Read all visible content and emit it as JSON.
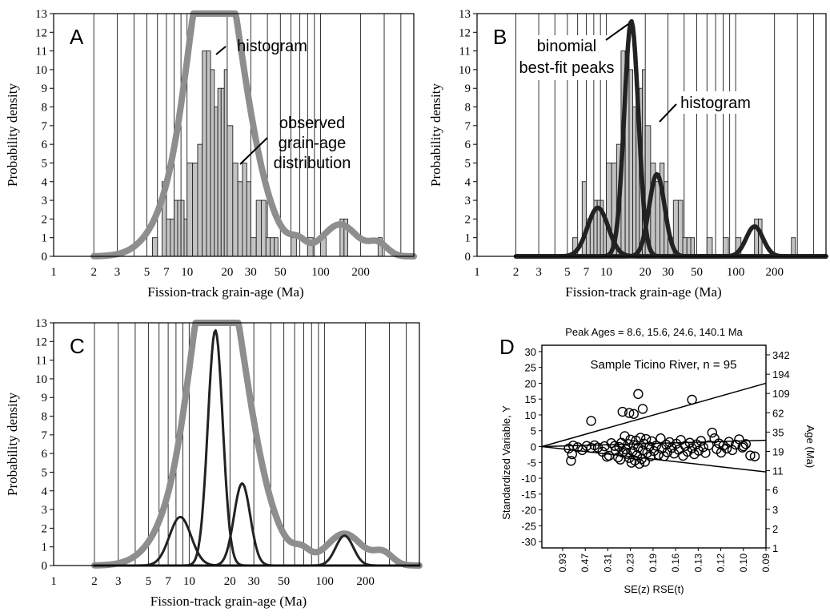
{
  "chart_data": [
    {
      "id": "A",
      "type": "bar",
      "panel_label": "A",
      "xlabel": "Fission-track grain-age (Ma)",
      "ylabel": "Probability density",
      "x_scale": "log",
      "xlim": [
        1,
        500
      ],
      "ylim": [
        0,
        13
      ],
      "x_tick_labels": [
        "1",
        "2",
        "3",
        "5",
        "7",
        "10",
        "20",
        "30",
        "50",
        "100",
        "200"
      ],
      "y_tick_labels": [
        "0",
        "1",
        "2",
        "3",
        "4",
        "5",
        "6",
        "7",
        "8",
        "9",
        "10",
        "11",
        "12",
        "13"
      ],
      "annotations": [
        "histogram",
        "observed",
        "grain-age",
        "distribution"
      ],
      "histogram": {
        "bin_left": [
          5.5,
          6.5,
          7,
          7.5,
          8,
          8.5,
          9,
          9.5,
          10,
          11,
          12,
          13,
          14,
          15,
          16,
          17,
          18,
          19,
          20,
          22,
          24,
          26,
          28,
          30,
          33,
          36,
          39,
          42,
          45,
          60,
          80,
          100,
          140,
          150,
          270
        ],
        "bin_right": [
          6,
          7,
          7.5,
          8,
          8.5,
          9,
          9.5,
          10,
          11,
          12,
          13,
          14,
          15,
          16,
          17,
          18,
          19,
          20,
          22,
          24,
          26,
          28,
          30,
          33,
          36,
          39,
          42,
          45,
          48,
          66,
          88,
          110,
          150,
          160,
          290
        ],
        "values": [
          1,
          4,
          2,
          2,
          3,
          3,
          3,
          2,
          5,
          5,
          6,
          11,
          11,
          10,
          8,
          9,
          9,
          10,
          7,
          5,
          4,
          5,
          4,
          1,
          3,
          3,
          1,
          1,
          1,
          1,
          1,
          1,
          2,
          2,
          1
        ]
      },
      "series": [
        {
          "name": "observed grain-age distribution",
          "color": "#8e8e8e",
          "peaks": [
            {
              "age": 9,
              "height": 2.8,
              "width": 0.19
            },
            {
              "age": 14.2,
              "height": 8.5,
              "width": 0.15
            },
            {
              "age": 19,
              "height": 8.3,
              "width": 0.18
            },
            {
              "age": 28,
              "height": 2.4,
              "width": 0.2
            },
            {
              "age": 68,
              "height": 0.55,
              "width": 0.06
            },
            {
              "age": 140,
              "height": 1.7,
              "width": 0.13
            },
            {
              "age": 270,
              "height": 0.65,
              "width": 0.07
            }
          ]
        }
      ]
    },
    {
      "id": "B",
      "type": "bar",
      "panel_label": "B",
      "xlabel": "Fission-track grain-age (Ma)",
      "ylabel": "Probability density",
      "x_scale": "log",
      "xlim": [
        1,
        500
      ],
      "ylim": [
        0,
        13
      ],
      "x_tick_labels": [
        "1",
        "2",
        "3",
        "5",
        "7",
        "10",
        "20",
        "30",
        "50",
        "100",
        "200"
      ],
      "y_tick_labels": [
        "0",
        "1",
        "2",
        "3",
        "4",
        "5",
        "6",
        "7",
        "8",
        "9",
        "10",
        "11",
        "12",
        "13"
      ],
      "annotations": [
        "binomial",
        "best-fit peaks",
        "histogram"
      ],
      "histogram": {
        "bin_left": [
          5.5,
          6.5,
          7,
          7.5,
          8,
          8.5,
          9,
          9.5,
          10,
          11,
          12,
          13,
          14,
          15,
          16,
          17,
          18,
          19,
          20,
          22,
          24,
          26,
          28,
          30,
          33,
          36,
          39,
          42,
          45,
          60,
          80,
          100,
          140,
          150,
          270
        ],
        "bin_right": [
          6,
          7,
          7.5,
          8,
          8.5,
          9,
          9.5,
          10,
          11,
          12,
          13,
          14,
          15,
          16,
          17,
          18,
          19,
          20,
          22,
          24,
          26,
          28,
          30,
          33,
          36,
          39,
          42,
          45,
          48,
          66,
          88,
          110,
          150,
          160,
          290
        ],
        "values": [
          1,
          4,
          2,
          2,
          3,
          3,
          3,
          2,
          5,
          5,
          6,
          11,
          11,
          10,
          8,
          9,
          9,
          10,
          7,
          5,
          4,
          5,
          4,
          1,
          3,
          3,
          1,
          1,
          1,
          1,
          1,
          1,
          2,
          2,
          1
        ]
      },
      "series": [
        {
          "name": "binomial best-fit peak 8.6 Ma",
          "color": "#222222",
          "peaks": [
            {
              "age": 8.6,
              "height": 2.6,
              "width": 0.08
            }
          ]
        },
        {
          "name": "binomial best-fit peak 15.6 Ma",
          "color": "#222222",
          "peaks": [
            {
              "age": 15.6,
              "height": 12.6,
              "width": 0.055
            }
          ]
        },
        {
          "name": "binomial best-fit peak 24.6 Ma",
          "color": "#222222",
          "peaks": [
            {
              "age": 24.6,
              "height": 4.4,
              "width": 0.06
            }
          ]
        },
        {
          "name": "binomial best-fit peak 140.1 Ma",
          "color": "#222222",
          "peaks": [
            {
              "age": 140.1,
              "height": 1.6,
              "width": 0.065
            }
          ]
        }
      ]
    },
    {
      "id": "C",
      "type": "line",
      "panel_label": "C",
      "xlabel": "Fission-track grain-age (Ma)",
      "ylabel": "Probability density",
      "x_scale": "log",
      "xlim": [
        1,
        500
      ],
      "ylim": [
        0,
        13
      ],
      "x_tick_labels": [
        "1",
        "2",
        "3",
        "5",
        "7",
        "10",
        "20",
        "30",
        "50",
        "100",
        "200"
      ],
      "y_tick_labels": [
        "0",
        "1",
        "2",
        "3",
        "4",
        "5",
        "6",
        "7",
        "8",
        "9",
        "10",
        "11",
        "12",
        "13"
      ],
      "series": [
        {
          "name": "observed grain-age distribution",
          "color": "#8e8e8e",
          "peaks": [
            {
              "age": 9,
              "height": 2.8,
              "width": 0.19
            },
            {
              "age": 14.2,
              "height": 8.5,
              "width": 0.15
            },
            {
              "age": 19,
              "height": 8.3,
              "width": 0.18
            },
            {
              "age": 28,
              "height": 2.4,
              "width": 0.2
            },
            {
              "age": 68,
              "height": 0.55,
              "width": 0.06
            },
            {
              "age": 140,
              "height": 1.7,
              "width": 0.13
            },
            {
              "age": 270,
              "height": 0.65,
              "width": 0.07
            }
          ]
        },
        {
          "name": "binomial best-fit peak 8.6 Ma",
          "color": "#222222",
          "peaks": [
            {
              "age": 8.6,
              "height": 2.6,
              "width": 0.08
            }
          ]
        },
        {
          "name": "binomial best-fit peak 15.6 Ma",
          "color": "#222222",
          "peaks": [
            {
              "age": 15.6,
              "height": 12.6,
              "width": 0.055
            }
          ]
        },
        {
          "name": "binomial best-fit peak 24.6 Ma",
          "color": "#222222",
          "peaks": [
            {
              "age": 24.6,
              "height": 4.4,
              "width": 0.06
            }
          ]
        },
        {
          "name": "binomial best-fit peak 140.1 Ma",
          "color": "#222222",
          "peaks": [
            {
              "age": 140.1,
              "height": 1.6,
              "width": 0.065
            }
          ]
        }
      ]
    },
    {
      "id": "D",
      "type": "scatter",
      "panel_label": "D",
      "title": "Peak Ages = 8.6, 15.6, 24.6, 140.1 Ma",
      "subtitle": "Sample Ticino River, n = 95",
      "ylabel": "Standardized Variable, Y",
      "xlabel": "SE(z)  RSE(t)",
      "right_ylabel": "Age (Ma)",
      "ylim": [
        -32,
        32
      ],
      "y_tick_labels": [
        "30",
        "25",
        "20",
        "15",
        "10",
        "5",
        "0",
        "-5",
        "-10",
        "-15",
        "-20",
        "-25",
        "-30"
      ],
      "x_tick_labels": [
        "0.93",
        "0.47",
        "0.31",
        "0.23",
        "0.19",
        "0.16",
        "0.13",
        "0.12",
        "0.10",
        "0.09"
      ],
      "x_range": [
        0,
        10
      ],
      "right_ages": [
        "342",
        "194",
        "109",
        "62",
        "35",
        "19",
        "11",
        "6",
        "3",
        "2",
        "1"
      ],
      "radial_lines": [
        {
          "age": 109,
          "end_y": 20
        },
        {
          "age": 19,
          "end_y": 2
        },
        {
          "age": 11,
          "end_y": -8
        }
      ],
      "points": [
        {
          "x": 2.2,
          "y": 8.1
        },
        {
          "x": 3.6,
          "y": 11
        },
        {
          "x": 3.9,
          "y": 10.6
        },
        {
          "x": 4.1,
          "y": 10.3
        },
        {
          "x": 4.3,
          "y": 16.6
        },
        {
          "x": 4.5,
          "y": 11.9
        },
        {
          "x": 6.7,
          "y": 14.8
        },
        {
          "x": 1.2,
          "y": -0.6
        },
        {
          "x": 1.3,
          "y": -4.5
        },
        {
          "x": 1.35,
          "y": -2.4
        },
        {
          "x": 1.4,
          "y": 0.3
        },
        {
          "x": 1.6,
          "y": -0.2
        },
        {
          "x": 1.8,
          "y": -1.1
        },
        {
          "x": 2.0,
          "y": 0.2
        },
        {
          "x": 2.2,
          "y": -0.4
        },
        {
          "x": 2.35,
          "y": 0.4
        },
        {
          "x": 2.5,
          "y": -0.3
        },
        {
          "x": 2.7,
          "y": -1.6
        },
        {
          "x": 2.8,
          "y": 0.1
        },
        {
          "x": 2.9,
          "y": -3.2
        },
        {
          "x": 3.0,
          "y": -2.9
        },
        {
          "x": 3.1,
          "y": 1.1
        },
        {
          "x": 3.25,
          "y": 0.2
        },
        {
          "x": 3.3,
          "y": -1.2
        },
        {
          "x": 3.4,
          "y": -3.4
        },
        {
          "x": 3.45,
          "y": -0.1
        },
        {
          "x": 3.5,
          "y": -4.1
        },
        {
          "x": 3.55,
          "y": 1.2
        },
        {
          "x": 3.6,
          "y": -1.9
        },
        {
          "x": 3.7,
          "y": 3.3
        },
        {
          "x": 3.75,
          "y": -0.9
        },
        {
          "x": 3.8,
          "y": -2.3
        },
        {
          "x": 3.85,
          "y": 0.8
        },
        {
          "x": 3.9,
          "y": -3.6
        },
        {
          "x": 3.95,
          "y": 2.2
        },
        {
          "x": 4.0,
          "y": -5.1
        },
        {
          "x": 4.05,
          "y": -1.5
        },
        {
          "x": 4.1,
          "y": 0.5
        },
        {
          "x": 4.15,
          "y": -4.4
        },
        {
          "x": 4.2,
          "y": 1.9
        },
        {
          "x": 4.25,
          "y": -2.7
        },
        {
          "x": 4.3,
          "y": -0.3
        },
        {
          "x": 4.35,
          "y": -5.4
        },
        {
          "x": 4.4,
          "y": 2.8
        },
        {
          "x": 4.45,
          "y": -3.9
        },
        {
          "x": 4.5,
          "y": -1.2
        },
        {
          "x": 4.55,
          "y": 0.9
        },
        {
          "x": 4.6,
          "y": -4.8
        },
        {
          "x": 4.65,
          "y": 2.4
        },
        {
          "x": 4.7,
          "y": -2.0
        },
        {
          "x": 4.8,
          "y": 0.0
        },
        {
          "x": 4.85,
          "y": -3.1
        },
        {
          "x": 4.9,
          "y": 1.7
        },
        {
          "x": 5.0,
          "y": -1.4
        },
        {
          "x": 5.1,
          "y": 0.3
        },
        {
          "x": 5.2,
          "y": -2.6
        },
        {
          "x": 5.3,
          "y": 2.6
        },
        {
          "x": 5.35,
          "y": -0.7
        },
        {
          "x": 5.45,
          "y": -3.0
        },
        {
          "x": 5.55,
          "y": 0.6
        },
        {
          "x": 5.6,
          "y": -1.8
        },
        {
          "x": 5.7,
          "y": 1.4
        },
        {
          "x": 5.8,
          "y": -0.4
        },
        {
          "x": 5.9,
          "y": -2.2
        },
        {
          "x": 6.0,
          "y": 0.9
        },
        {
          "x": 6.1,
          "y": -1.0
        },
        {
          "x": 6.2,
          "y": 2.1
        },
        {
          "x": 6.3,
          "y": -2.9
        },
        {
          "x": 6.4,
          "y": 0.2
        },
        {
          "x": 6.5,
          "y": -1.6
        },
        {
          "x": 6.6,
          "y": 1.2
        },
        {
          "x": 6.7,
          "y": -0.5
        },
        {
          "x": 6.8,
          "y": -2.4
        },
        {
          "x": 6.9,
          "y": 0.7
        },
        {
          "x": 7.0,
          "y": -1.3
        },
        {
          "x": 7.1,
          "y": 1.8
        },
        {
          "x": 7.2,
          "y": -0.2
        },
        {
          "x": 7.3,
          "y": -2.0
        },
        {
          "x": 7.45,
          "y": 0.4
        },
        {
          "x": 7.6,
          "y": 4.4
        },
        {
          "x": 7.7,
          "y": 2.6
        },
        {
          "x": 7.8,
          "y": -0.8
        },
        {
          "x": 7.9,
          "y": 1.0
        },
        {
          "x": 8.0,
          "y": -1.9
        },
        {
          "x": 8.1,
          "y": 0.3
        },
        {
          "x": 8.25,
          "y": -0.6
        },
        {
          "x": 8.35,
          "y": 1.5
        },
        {
          "x": 8.5,
          "y": -1.1
        },
        {
          "x": 8.65,
          "y": 0.6
        },
        {
          "x": 8.8,
          "y": 2.3
        },
        {
          "x": 8.95,
          "y": -0.3
        },
        {
          "x": 9.1,
          "y": 0.8
        },
        {
          "x": 9.3,
          "y": -2.8
        },
        {
          "x": 9.5,
          "y": -3.1
        },
        {
          "x": 9.0,
          "y": 0.1
        }
      ]
    }
  ]
}
